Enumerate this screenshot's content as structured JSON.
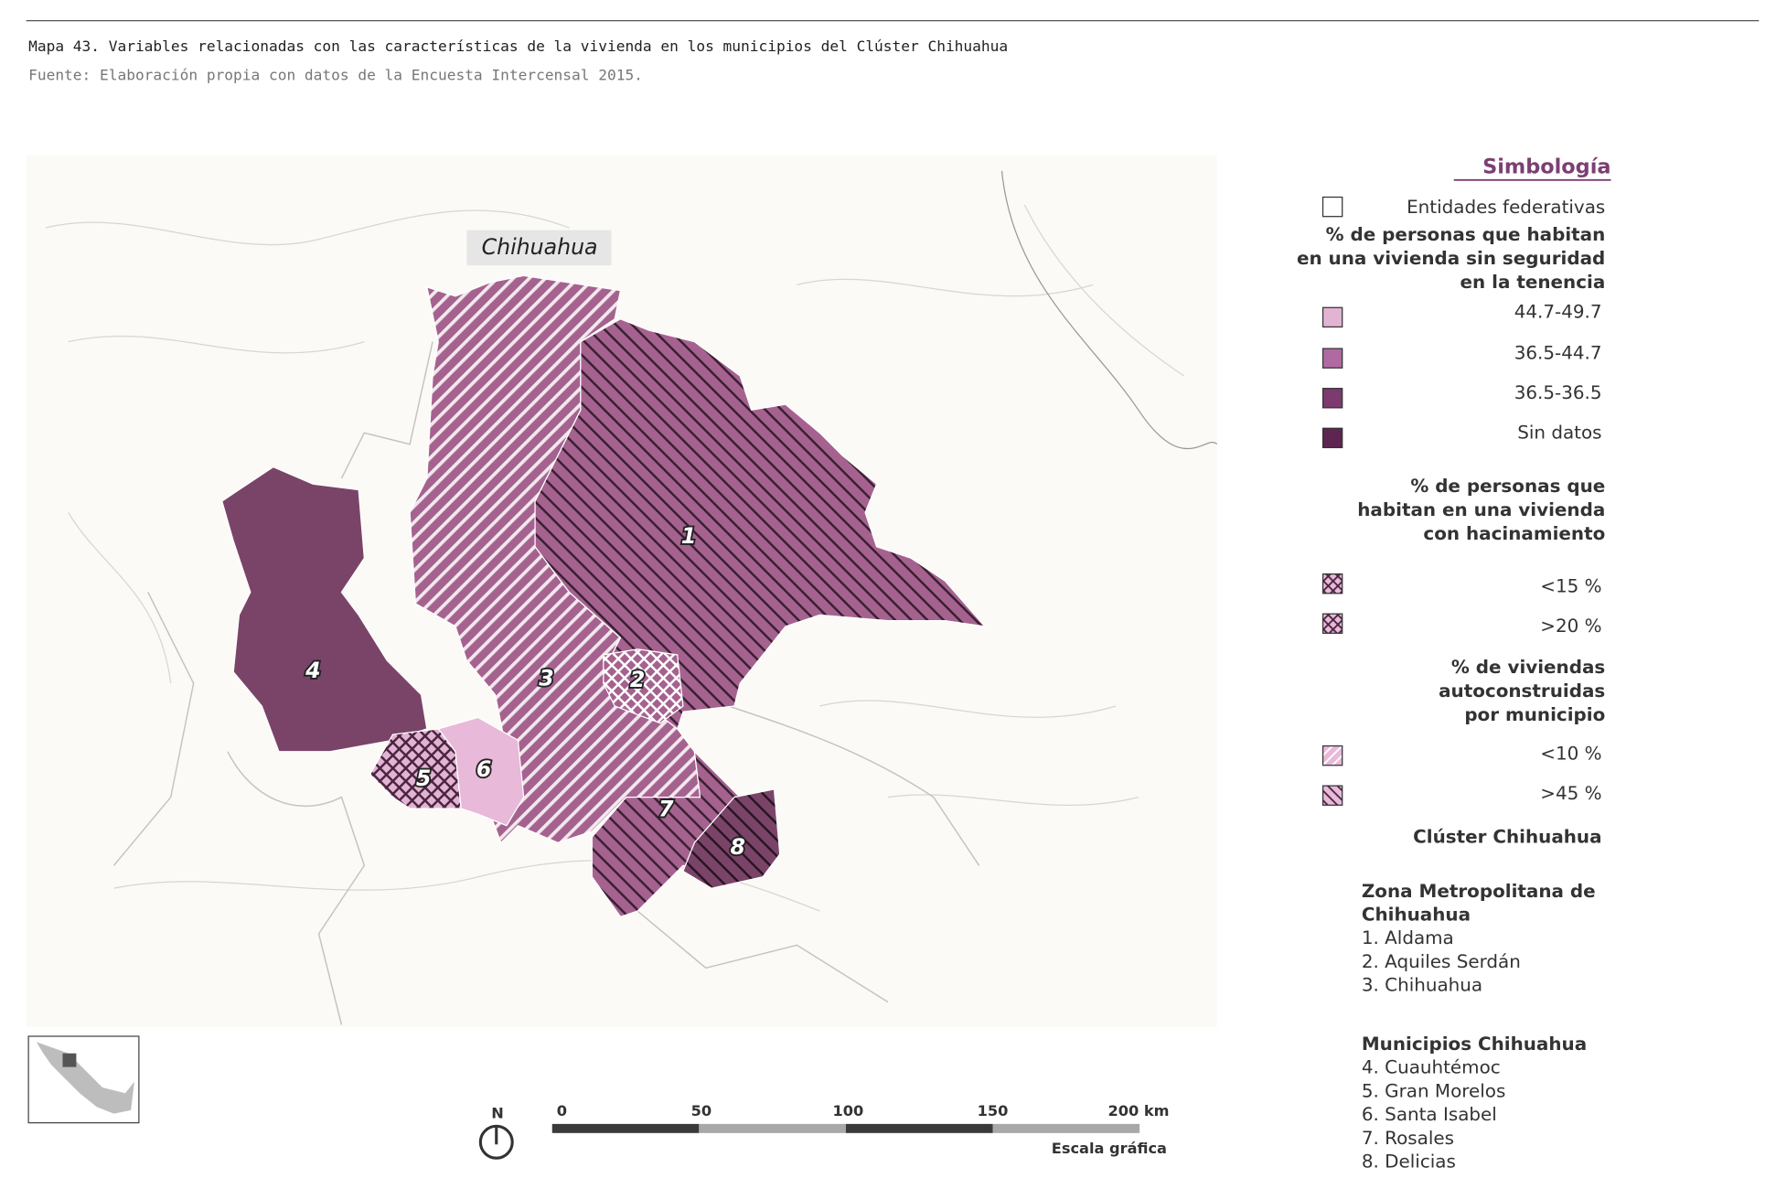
{
  "header": {
    "title": "Mapa 43. Variables relacionadas con las características de la vivienda en los municipios del Clúster Chihuahua",
    "source": "Fuente: Elaboración propia con datos de la Encuesta Intercensal 2015."
  },
  "map": {
    "state_label": "Chihuahua",
    "region_labels": [
      "1",
      "2",
      "3",
      "4",
      "5",
      "6",
      "7",
      "8"
    ]
  },
  "legend": {
    "title": "Simbología",
    "entities": "Entidades federativas",
    "tenure_title_lines": [
      "% de personas que habitan",
      "en una vivienda sin seguridad",
      "en la tenencia"
    ],
    "tenure_items": [
      "44.7-49.7",
      "36.5-44.7",
      "36.5-36.5",
      "Sin datos"
    ],
    "crowding_title_lines": [
      "% de personas que",
      "habitan en una vivienda",
      "con hacinamiento"
    ],
    "crowding_items": [
      "<15 %",
      ">20 %"
    ],
    "selfbuilt_title_lines": [
      "% de viviendas",
      "autoconstruidas",
      "por municipio"
    ],
    "selfbuilt_items": [
      "<10 %",
      ">45 %"
    ],
    "cluster_title": "Clúster Chihuahua",
    "groups": [
      {
        "title_lines": [
          "Zona Metropolitana de",
          "Chihuahua"
        ],
        "items": [
          "1. Aldama",
          "2. Aquiles Serdán",
          "3. Chihuahua"
        ]
      },
      {
        "title_lines": [
          "Municipios Chihuahua"
        ],
        "items": [
          "4. Cuauhtémoc",
          "5. Gran Morelos",
          "6. Santa Isabel",
          "7. Rosales",
          "8. Delicias"
        ]
      }
    ]
  },
  "scale": {
    "north": "N",
    "ticks": [
      "0",
      "50",
      "100",
      "150",
      "200 km"
    ],
    "caption": "Escala gráfica"
  }
}
